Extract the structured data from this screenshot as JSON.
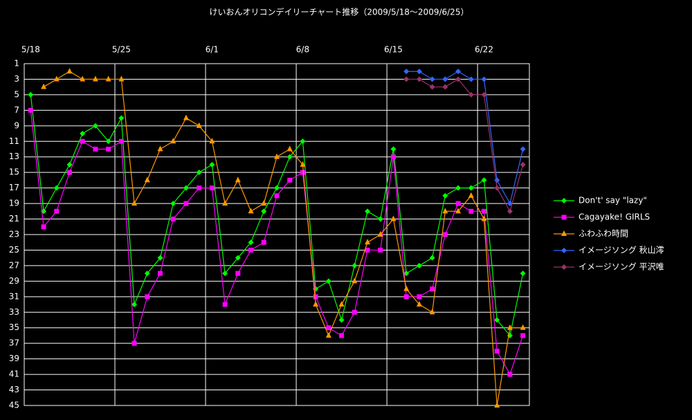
{
  "chart_data": {
    "type": "line",
    "title": "けいおんオリコンデイリーチャート推移（2009/5/18～2009/6/25）",
    "categories": [
      "5/18",
      null,
      null,
      null,
      null,
      null,
      null,
      "5/25",
      null,
      null,
      null,
      null,
      null,
      null,
      "6/1",
      null,
      null,
      null,
      null,
      null,
      null,
      "6/8",
      null,
      null,
      null,
      null,
      null,
      null,
      "6/15",
      null,
      null,
      null,
      null,
      null,
      null,
      "6/22",
      null,
      null,
      null
    ],
    "ylim": [
      45,
      1
    ],
    "yticks": [
      1,
      3,
      5,
      7,
      9,
      11,
      13,
      15,
      17,
      19,
      21,
      23,
      25,
      27,
      29,
      31,
      33,
      35,
      37,
      39,
      41,
      43,
      45
    ],
    "grid": true,
    "legend": "right",
    "series": [
      {
        "name": "Don't' say \"lazy\"",
        "color": "#00ff00",
        "marker": "diamond",
        "values": [
          5,
          20,
          17,
          14,
          10,
          9,
          11,
          8,
          32,
          28,
          26,
          19,
          17,
          15,
          14,
          28,
          26,
          24,
          20,
          17,
          13,
          11,
          30,
          29,
          34,
          27,
          20,
          21,
          12,
          28,
          27,
          26,
          18,
          17,
          17,
          16,
          34,
          36,
          28
        ]
      },
      {
        "name": "Cagayake! GIRLS",
        "color": "#ff00ff",
        "marker": "square",
        "values": [
          7,
          22,
          20,
          15,
          11,
          12,
          12,
          11,
          37,
          31,
          28,
          21,
          19,
          17,
          17,
          32,
          28,
          25,
          24,
          18,
          16,
          15,
          31,
          35,
          36,
          33,
          25,
          25,
          13,
          31,
          31,
          30,
          23,
          19,
          20,
          20,
          38,
          41,
          36
        ]
      },
      {
        "name": "ふわふわ時間",
        "color": "#ff9900",
        "marker": "triangle",
        "values": [
          null,
          4,
          3,
          2,
          3,
          3,
          3,
          3,
          19,
          16,
          12,
          11,
          8,
          9,
          11,
          19,
          16,
          20,
          19,
          13,
          12,
          14,
          32,
          36,
          32,
          29,
          24,
          23,
          21,
          30,
          32,
          33,
          20,
          20,
          18,
          21,
          45,
          35,
          35
        ]
      },
      {
        "name": "イメージソング 秋山澪",
        "color": "#3366ff",
        "marker": "diamond",
        "values": [
          null,
          null,
          null,
          null,
          null,
          null,
          null,
          null,
          null,
          null,
          null,
          null,
          null,
          null,
          null,
          null,
          null,
          null,
          null,
          null,
          null,
          null,
          null,
          null,
          null,
          null,
          null,
          null,
          null,
          2,
          2,
          3,
          3,
          2,
          3,
          3,
          16,
          19,
          12
        ]
      },
      {
        "name": "イメージソング 平沢唯",
        "color": "#993366",
        "marker": "diamond",
        "values": [
          null,
          null,
          null,
          null,
          null,
          null,
          null,
          null,
          null,
          null,
          null,
          null,
          null,
          null,
          null,
          null,
          null,
          null,
          null,
          null,
          null,
          null,
          null,
          null,
          null,
          null,
          null,
          null,
          null,
          3,
          3,
          4,
          4,
          3,
          5,
          5,
          17,
          20,
          14
        ]
      }
    ]
  }
}
